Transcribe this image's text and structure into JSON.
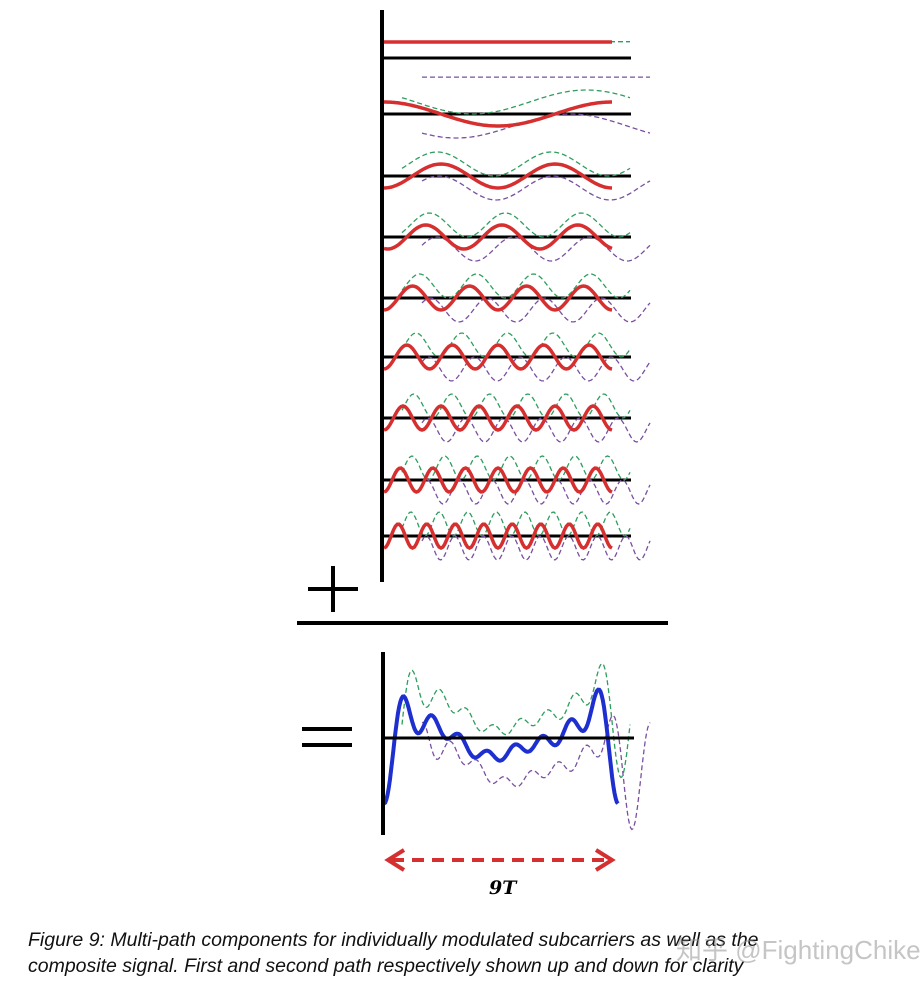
{
  "figure": {
    "period_label": "9T",
    "subcarrier_count": 9,
    "colors": {
      "axis": "#000000",
      "subcarrier_path1": "#d62f2f",
      "path_up_dashed": "#2e9e5e",
      "path_down_dashed": "#7a4fa0",
      "composite": "#1e2fd0",
      "period_arrow": "#d62f2f"
    },
    "operators": {
      "plus": "+",
      "equals": "="
    }
  },
  "caption": {
    "line1": "Figure 9: Multi-path components for individually modulated subcarriers as well as the",
    "line2": "composite signal. First and second path respectively shown up and down for clarity"
  },
  "watermark": "知乎 @FightingChiken"
}
